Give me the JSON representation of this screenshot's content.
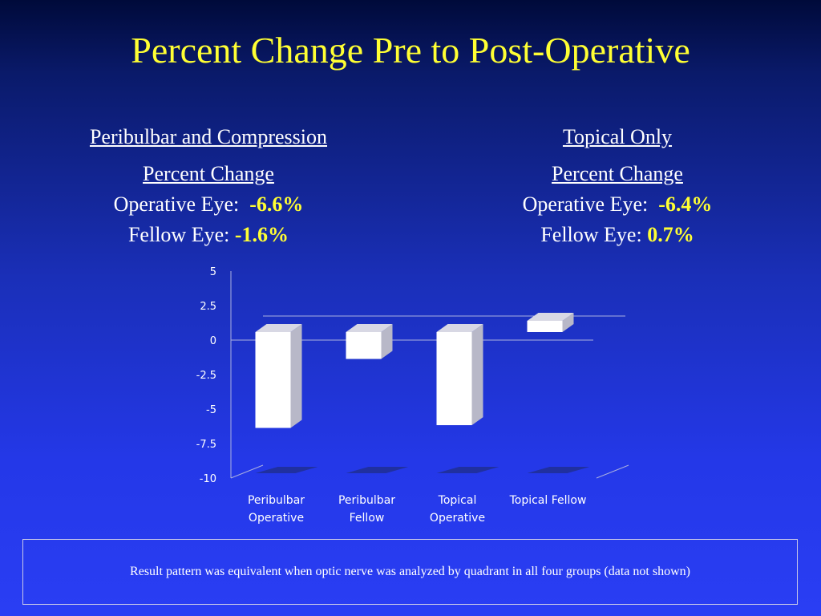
{
  "slide": {
    "title": "Percent Change Pre to Post-Operative"
  },
  "left_panel": {
    "heading": "Peribulbar and Compression",
    "subheading": "Percent Change",
    "operative_label": "Operative Eye:",
    "operative_value": "-6.6%",
    "fellow_label": "Fellow Eye:",
    "fellow_value": "-1.6%"
  },
  "right_panel": {
    "heading": "Topical Only",
    "subheading": "Percent Change",
    "operative_label": "Operative Eye:",
    "operative_value": "-6.4%",
    "fellow_label": "Fellow Eye:",
    "fellow_value": "0.7%"
  },
  "footnote": "Result pattern was equivalent when optic nerve was analyzed by quadrant in all four groups (data not shown)",
  "colors": {
    "title": "#ffff33",
    "highlight": "#ffff33",
    "bar_face": "#ffffff",
    "bar_side": "#b8b8c8",
    "shadow": "#2030a0"
  },
  "chart_data": {
    "type": "bar",
    "style": "3d",
    "categories": [
      [
        "Peribulbar",
        "Operative"
      ],
      [
        "Peribulbar",
        "Fellow"
      ],
      [
        "Topical",
        "Operative"
      ],
      [
        "Topical Fellow"
      ]
    ],
    "values": [
      -6.6,
      -1.6,
      -6.4,
      0.7
    ],
    "ylim": [
      -10,
      5
    ],
    "yticks": [
      "5",
      "2.5",
      "0",
      "-2.5",
      "-5",
      "-7.5",
      "-10"
    ],
    "ytick_values": [
      5,
      2.5,
      0,
      -2.5,
      -5,
      -7.5,
      -10
    ],
    "title": "",
    "xlabel": "",
    "ylabel": "",
    "grid": false,
    "legend": "none"
  }
}
